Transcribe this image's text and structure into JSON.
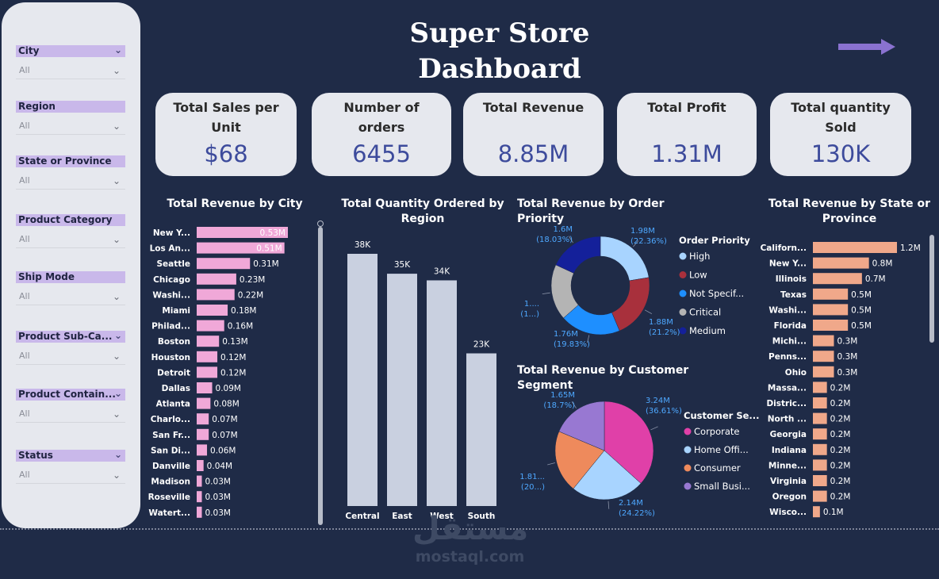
{
  "page": {
    "title_line1": "Super Store",
    "title_line2": "Dashboard",
    "background": "#1f2b47"
  },
  "filters": [
    {
      "label": "City",
      "value": "All"
    },
    {
      "label": "Region",
      "value": "All"
    },
    {
      "label": "State or Province",
      "value": "All"
    },
    {
      "label": "Product Category",
      "value": "All"
    },
    {
      "label": "Ship Mode",
      "value": "All"
    },
    {
      "label": "Product Sub-Ca...",
      "value": "All"
    },
    {
      "label": "Product Contain...",
      "value": "All"
    },
    {
      "label": "Status",
      "value": "All"
    }
  ],
  "nav": {
    "icon": "arrow-right-icon"
  },
  "kpis": [
    {
      "label": "Total Sales per Unit",
      "value": "$68"
    },
    {
      "label": "Number of orders",
      "value": "6455"
    },
    {
      "label": "Total Revenue",
      "value": "8.85M"
    },
    {
      "label": "Total Profit",
      "value": "1.31M"
    },
    {
      "label": "Total quantity Sold",
      "value": "130K"
    }
  ],
  "watermark": {
    "arabic": "مستقل",
    "latin": "mostaql.com"
  },
  "chart_data": [
    {
      "type": "bar",
      "orientation": "horizontal",
      "title": "Total Revenue by City",
      "color": "#f0a8d8",
      "categories": [
        "New Y...",
        "Los An...",
        "Seattle",
        "Chicago",
        "Washi...",
        "Miami",
        "Philad...",
        "Boston",
        "Houston",
        "Detroit",
        "Dallas",
        "Atlanta",
        "Charlo...",
        "San Fr...",
        "San Di...",
        "Danville",
        "Madison",
        "Roseville",
        "Watert..."
      ],
      "values": [
        0.53,
        0.51,
        0.31,
        0.23,
        0.22,
        0.18,
        0.16,
        0.13,
        0.12,
        0.12,
        0.09,
        0.08,
        0.07,
        0.07,
        0.06,
        0.04,
        0.03,
        0.03,
        0.03
      ],
      "labels": [
        "0.53M",
        "0.51M",
        "0.31M",
        "0.23M",
        "0.22M",
        "0.18M",
        "0.16M",
        "0.13M",
        "0.12M",
        "0.12M",
        "0.09M",
        "0.08M",
        "0.07M",
        "0.07M",
        "0.06M",
        "0.04M",
        "0.03M",
        "0.03M",
        "0.03M"
      ],
      "unit": "M"
    },
    {
      "type": "bar",
      "orientation": "vertical",
      "title": "Total Quantity Ordered by Region",
      "color": "#c9d0e0",
      "categories": [
        "Central",
        "East",
        "West",
        "South"
      ],
      "values": [
        38,
        35,
        34,
        23
      ],
      "labels": [
        "38K",
        "35K",
        "34K",
        "23K"
      ],
      "unit": "K"
    },
    {
      "type": "pie",
      "variant": "donut",
      "title": "Total Revenue by Order Priority",
      "legend_title": "Order Priority",
      "legend_position": "right",
      "slices": [
        {
          "name": "High",
          "value": 1.98,
          "label": "1.98M",
          "pct": "(22.36%)",
          "color": "#a8d4ff"
        },
        {
          "name": "Low",
          "value": 1.88,
          "label": "1.88M",
          "pct": "(21.2%)",
          "color": "#a8303c"
        },
        {
          "name": "Not Specif...",
          "value": 1.76,
          "label": "1.76M",
          "pct": "(19.83%)",
          "color": "#1e8fff"
        },
        {
          "name": "Critical",
          "value": 1.63,
          "label": "1....",
          "pct": "(1...)",
          "color": "#b4b4b4"
        },
        {
          "name": "Medium",
          "value": 1.6,
          "label": "1.6M",
          "pct": "(18.03%)",
          "color": "#14209a"
        }
      ]
    },
    {
      "type": "pie",
      "title": "Total Revenue by Customer Segment",
      "legend_title": "Customer Se...",
      "legend_position": "right",
      "slices": [
        {
          "name": "Corporate",
          "value": 3.24,
          "label": "3.24M",
          "pct": "(36.61%)",
          "color": "#e040a8"
        },
        {
          "name": "Home Offi...",
          "value": 2.14,
          "label": "2.14M",
          "pct": "(24.22%)",
          "color": "#a8d4ff"
        },
        {
          "name": "Consumer",
          "value": 1.81,
          "label": "1.81...",
          "pct": "(20...)",
          "color": "#ee8a5c"
        },
        {
          "name": "Small Busi...",
          "value": 1.65,
          "label": "1.65M",
          "pct": "(18.7%)",
          "color": "#9878d2"
        }
      ]
    },
    {
      "type": "bar",
      "orientation": "horizontal",
      "title": "Total Revenue by State or Province",
      "color": "#f0a88a",
      "categories": [
        "Californ...",
        "New Y...",
        "Illinois",
        "Texas",
        "Washi...",
        "Florida",
        "Michi...",
        "Penns...",
        "Ohio",
        "Massa...",
        "Distric...",
        "North ...",
        "Georgia",
        "Indiana",
        "Minne...",
        "Virginia",
        "Oregon",
        "Wisco..."
      ],
      "values": [
        1.2,
        0.8,
        0.7,
        0.5,
        0.5,
        0.5,
        0.3,
        0.3,
        0.3,
        0.2,
        0.2,
        0.2,
        0.2,
        0.2,
        0.2,
        0.2,
        0.2,
        0.1
      ],
      "labels": [
        "1.2M",
        "0.8M",
        "0.7M",
        "0.5M",
        "0.5M",
        "0.5M",
        "0.3M",
        "0.3M",
        "0.3M",
        "0.2M",
        "0.2M",
        "0.2M",
        "0.2M",
        "0.2M",
        "0.2M",
        "0.2M",
        "0.2M",
        "0.1M"
      ],
      "unit": "M"
    }
  ]
}
